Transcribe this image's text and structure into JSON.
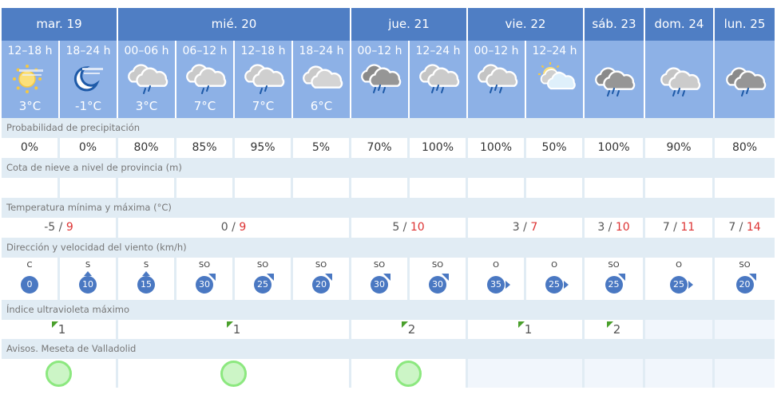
{
  "days": [
    {
      "label": "mar. 19",
      "span": 2
    },
    {
      "label": "mié. 20",
      "span": 4
    },
    {
      "label": "jue. 21",
      "span": 2
    },
    {
      "label": "vie. 22",
      "span": 2
    },
    {
      "label": "sáb. 23",
      "span": 1
    },
    {
      "label": "dom. 24",
      "span": 1
    },
    {
      "label": "lun. 25",
      "span": 1
    }
  ],
  "periods": [
    {
      "time": "12–18 h",
      "icon": "sun-haze",
      "temp": "3°C"
    },
    {
      "time": "18–24 h",
      "icon": "moon-haze",
      "temp": "-1°C"
    },
    {
      "time": "00–06 h",
      "icon": "cloud-light-rain",
      "temp": "3°C"
    },
    {
      "time": "06–12 h",
      "icon": "cloud-light-rain",
      "temp": "7°C"
    },
    {
      "time": "12–18 h",
      "icon": "cloud-light-rain",
      "temp": "7°C"
    },
    {
      "time": "18–24 h",
      "icon": "cloudy",
      "temp": "6°C"
    },
    {
      "time": "00–12 h",
      "icon": "dark-cloud-rain",
      "temp": ""
    },
    {
      "time": "12–24 h",
      "icon": "cloud-rain",
      "temp": ""
    },
    {
      "time": "00–12 h",
      "icon": "cloud-rain",
      "temp": ""
    },
    {
      "time": "12–24 h",
      "icon": "sun-cloud",
      "temp": ""
    },
    {
      "time": "",
      "icon": "dark-cloud-rain",
      "temp": ""
    },
    {
      "time": "",
      "icon": "cloud-rain",
      "temp": ""
    },
    {
      "time": "",
      "icon": "dark-cloud-light-rain",
      "temp": ""
    }
  ],
  "sections": {
    "precip": "Probabilidad de precipitación",
    "snow": "Cota de nieve a nivel de provincia (m)",
    "temp": "Temperatura mínima y máxima (°C)",
    "wind": "Dirección y velocidad del viento (km/h)",
    "uv": "Índice ultravioleta máximo",
    "alerts": "Avisos. Meseta de Valladolid"
  },
  "precip": [
    "0%",
    "0%",
    "80%",
    "85%",
    "95%",
    "5%",
    "70%",
    "100%",
    "100%",
    "50%",
    "100%",
    "90%",
    "80%"
  ],
  "snow": [
    "",
    "",
    "",
    "",
    "",
    "",
    "",
    "",
    "",
    "",
    "",
    "",
    ""
  ],
  "temps": [
    {
      "min": "-5",
      "max": "9",
      "span": 2
    },
    {
      "min": "0",
      "max": "9",
      "span": 4
    },
    {
      "min": "5",
      "max": "10",
      "span": 2
    },
    {
      "min": "3",
      "max": "7",
      "span": 2
    },
    {
      "min": "3",
      "max": "10",
      "span": 1
    },
    {
      "min": "7",
      "max": "11",
      "span": 1
    },
    {
      "min": "7",
      "max": "14",
      "span": 1
    }
  ],
  "wind": [
    {
      "dir": "C",
      "speed": "0"
    },
    {
      "dir": "S",
      "speed": "10"
    },
    {
      "dir": "S",
      "speed": "15"
    },
    {
      "dir": "SO",
      "speed": "30"
    },
    {
      "dir": "SO",
      "speed": "25"
    },
    {
      "dir": "SO",
      "speed": "20"
    },
    {
      "dir": "SO",
      "speed": "30"
    },
    {
      "dir": "SO",
      "speed": "30"
    },
    {
      "dir": "O",
      "speed": "35"
    },
    {
      "dir": "O",
      "speed": "25"
    },
    {
      "dir": "SO",
      "speed": "25"
    },
    {
      "dir": "O",
      "speed": "25"
    },
    {
      "dir": "SO",
      "speed": "20"
    }
  ],
  "uv": [
    {
      "value": "1",
      "span": 2
    },
    {
      "value": "1",
      "span": 4
    },
    {
      "value": "2",
      "span": 2
    },
    {
      "value": "1",
      "span": 2
    },
    {
      "value": "2",
      "span": 1
    },
    {
      "value": "",
      "span": 1
    },
    {
      "value": "",
      "span": 1
    }
  ],
  "alerts": [
    {
      "level": "green",
      "span": 2
    },
    {
      "level": "green",
      "span": 4
    },
    {
      "level": "green",
      "span": 2
    },
    {
      "level": "",
      "span": 2
    },
    {
      "level": "",
      "span": 1
    },
    {
      "level": "",
      "span": 1
    },
    {
      "level": "",
      "span": 1
    }
  ],
  "colors": {
    "header": "#4f7ec4",
    "subheader": "#8db1e6",
    "wind_badge": "#4a78c2",
    "max_temp": "#dd3333",
    "uv_low": "#4aa02c",
    "alert_green": "#8ce87f"
  }
}
